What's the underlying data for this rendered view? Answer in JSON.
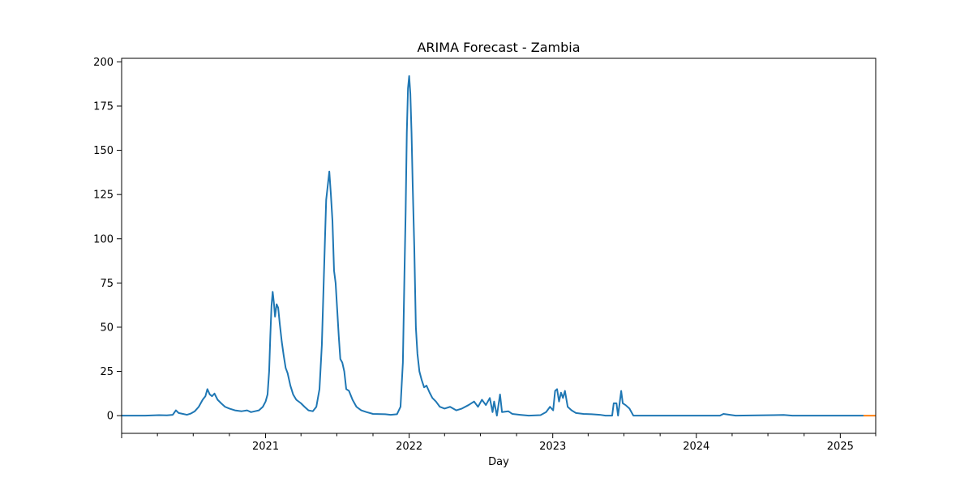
{
  "chart_data": {
    "type": "line",
    "title": "ARIMA Forecast - Zambia",
    "xlabel": "Day",
    "ylabel": "",
    "xlim": [
      "2020-01-01",
      "2025-04-01"
    ],
    "ylim": [
      -10,
      202
    ],
    "x_ticks": [
      "2021",
      "2022",
      "2023",
      "2024",
      "2025"
    ],
    "y_ticks": [
      "0",
      "25",
      "50",
      "75",
      "100",
      "125",
      "150",
      "175",
      "200"
    ],
    "grid": false,
    "colors": {
      "history": "#1f77b4",
      "forecast": "#ff7f0e"
    },
    "series": [
      {
        "points": [
          [
            "2020-01-01",
            0
          ],
          [
            "2020-03-01",
            0
          ],
          [
            "2020-04-05",
            0.3
          ],
          [
            "2020-04-25",
            0.2
          ],
          [
            "2020-05-10",
            0.5
          ],
          [
            "2020-05-18",
            3
          ],
          [
            "2020-05-25",
            1.5
          ],
          [
            "2020-06-05",
            1
          ],
          [
            "2020-06-15",
            0.5
          ],
          [
            "2020-06-25",
            1.2
          ],
          [
            "2020-07-05",
            2.5
          ],
          [
            "2020-07-15",
            5
          ],
          [
            "2020-07-25",
            9
          ],
          [
            "2020-08-01",
            11
          ],
          [
            "2020-08-06",
            15
          ],
          [
            "2020-08-12",
            12
          ],
          [
            "2020-08-18",
            11
          ],
          [
            "2020-08-24",
            12.5
          ],
          [
            "2020-09-01",
            9
          ],
          [
            "2020-09-10",
            7
          ],
          [
            "2020-09-20",
            5
          ],
          [
            "2020-10-01",
            4
          ],
          [
            "2020-10-15",
            3
          ],
          [
            "2020-11-01",
            2.5
          ],
          [
            "2020-11-15",
            3
          ],
          [
            "2020-11-25",
            2
          ],
          [
            "2020-12-05",
            2.5
          ],
          [
            "2020-12-15",
            3
          ],
          [
            "2020-12-25",
            5
          ],
          [
            "2021-01-01",
            8
          ],
          [
            "2021-01-06",
            12
          ],
          [
            "2021-01-10",
            25
          ],
          [
            "2021-01-13",
            45
          ],
          [
            "2021-01-16",
            62
          ],
          [
            "2021-01-19",
            70
          ],
          [
            "2021-01-22",
            64
          ],
          [
            "2021-01-25",
            56
          ],
          [
            "2021-01-29",
            63
          ],
          [
            "2021-02-02",
            61
          ],
          [
            "2021-02-06",
            52
          ],
          [
            "2021-02-11",
            42
          ],
          [
            "2021-02-16",
            34
          ],
          [
            "2021-02-21",
            27
          ],
          [
            "2021-02-26",
            24
          ],
          [
            "2021-03-05",
            17
          ],
          [
            "2021-03-12",
            12
          ],
          [
            "2021-03-20",
            9
          ],
          [
            "2021-04-01",
            7
          ],
          [
            "2021-04-10",
            5
          ],
          [
            "2021-04-20",
            3
          ],
          [
            "2021-05-01",
            2.5
          ],
          [
            "2021-05-10",
            5
          ],
          [
            "2021-05-18",
            15
          ],
          [
            "2021-05-24",
            40
          ],
          [
            "2021-05-28",
            70
          ],
          [
            "2021-06-01",
            100
          ],
          [
            "2021-06-04",
            122
          ],
          [
            "2021-06-08",
            130
          ],
          [
            "2021-06-12",
            138
          ],
          [
            "2021-06-16",
            125
          ],
          [
            "2021-06-20",
            110
          ],
          [
            "2021-06-24",
            82
          ],
          [
            "2021-06-28",
            75
          ],
          [
            "2021-07-02",
            60
          ],
          [
            "2021-07-06",
            45
          ],
          [
            "2021-07-10",
            32
          ],
          [
            "2021-07-15",
            30
          ],
          [
            "2021-07-20",
            25
          ],
          [
            "2021-07-25",
            15
          ],
          [
            "2021-08-01",
            14
          ],
          [
            "2021-08-10",
            9
          ],
          [
            "2021-08-20",
            5
          ],
          [
            "2021-09-01",
            3
          ],
          [
            "2021-09-15",
            2
          ],
          [
            "2021-10-01",
            1
          ],
          [
            "2021-11-01",
            0.8
          ],
          [
            "2021-11-15",
            0.5
          ],
          [
            "2021-12-01",
            0.8
          ],
          [
            "2021-12-10",
            5
          ],
          [
            "2021-12-16",
            30
          ],
          [
            "2021-12-20",
            80
          ],
          [
            "2021-12-23",
            115
          ],
          [
            "2021-12-26",
            160
          ],
          [
            "2021-12-29",
            185
          ],
          [
            "2022-01-01",
            192
          ],
          [
            "2022-01-04",
            182
          ],
          [
            "2022-01-07",
            160
          ],
          [
            "2022-01-10",
            130
          ],
          [
            "2022-01-14",
            95
          ],
          [
            "2022-01-18",
            50
          ],
          [
            "2022-01-22",
            35
          ],
          [
            "2022-01-27",
            25
          ],
          [
            "2022-02-02",
            20
          ],
          [
            "2022-02-08",
            16
          ],
          [
            "2022-02-14",
            17
          ],
          [
            "2022-02-22",
            13
          ],
          [
            "2022-03-01",
            10
          ],
          [
            "2022-03-10",
            8
          ],
          [
            "2022-03-20",
            5
          ],
          [
            "2022-04-01",
            4
          ],
          [
            "2022-04-15",
            5
          ],
          [
            "2022-05-01",
            3
          ],
          [
            "2022-05-15",
            4
          ],
          [
            "2022-06-01",
            6
          ],
          [
            "2022-06-15",
            8
          ],
          [
            "2022-06-25",
            5
          ],
          [
            "2022-07-05",
            9
          ],
          [
            "2022-07-15",
            6
          ],
          [
            "2022-07-25",
            10
          ],
          [
            "2022-08-01",
            2
          ],
          [
            "2022-08-05",
            8
          ],
          [
            "2022-08-12",
            0
          ],
          [
            "2022-08-20",
            12
          ],
          [
            "2022-08-25",
            2
          ],
          [
            "2022-09-10",
            2.5
          ],
          [
            "2022-09-20",
            1
          ],
          [
            "2022-10-10",
            0.5
          ],
          [
            "2022-11-01",
            0
          ],
          [
            "2022-12-01",
            0.3
          ],
          [
            "2022-12-15",
            2
          ],
          [
            "2022-12-25",
            5
          ],
          [
            "2023-01-02",
            3
          ],
          [
            "2023-01-07",
            14
          ],
          [
            "2023-01-12",
            15
          ],
          [
            "2023-01-17",
            8
          ],
          [
            "2023-01-22",
            13
          ],
          [
            "2023-01-27",
            10
          ],
          [
            "2023-02-01",
            14
          ],
          [
            "2023-02-08",
            5
          ],
          [
            "2023-02-18",
            3
          ],
          [
            "2023-03-01",
            1.5
          ],
          [
            "2023-03-20",
            1
          ],
          [
            "2023-04-10",
            0.8
          ],
          [
            "2023-05-01",
            0.5
          ],
          [
            "2023-05-15",
            0
          ],
          [
            "2023-06-01",
            0
          ],
          [
            "2023-06-05",
            7
          ],
          [
            "2023-06-12",
            7
          ],
          [
            "2023-06-16",
            0
          ],
          [
            "2023-06-24",
            14
          ],
          [
            "2023-06-28",
            7
          ],
          [
            "2023-07-05",
            6
          ],
          [
            "2023-07-15",
            4
          ],
          [
            "2023-07-25",
            0
          ],
          [
            "2024-03-01",
            0
          ],
          [
            "2024-03-10",
            1
          ],
          [
            "2024-04-10",
            0
          ],
          [
            "2024-07-15",
            0.3
          ],
          [
            "2024-08-10",
            0.4
          ],
          [
            "2024-09-01",
            0
          ],
          [
            "2025-03-01",
            0
          ]
        ]
      },
      {
        "points": [
          [
            "2025-03-01",
            0
          ],
          [
            "2025-04-01",
            0
          ]
        ]
      }
    ]
  }
}
